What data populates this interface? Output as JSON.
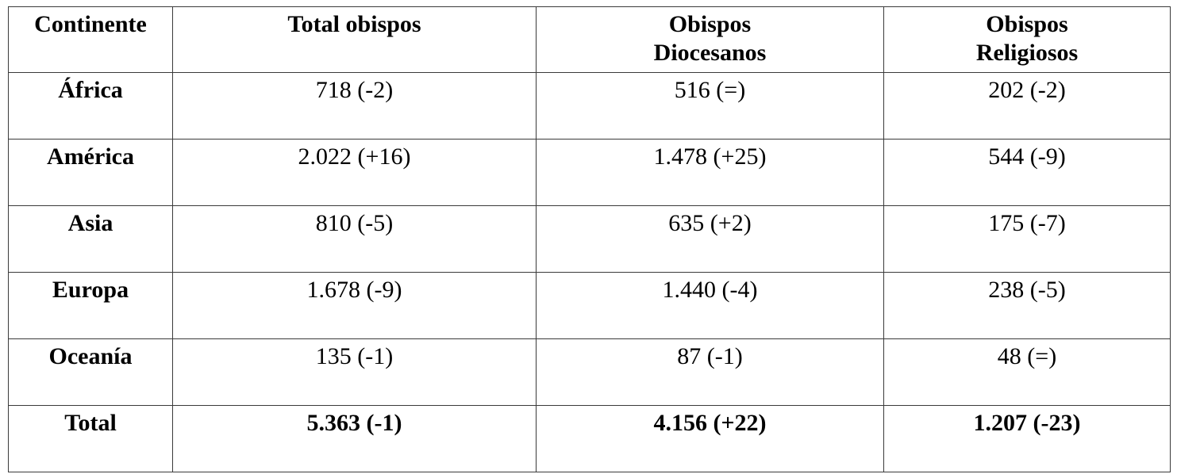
{
  "table": {
    "header": [
      [
        "Continente"
      ],
      [
        "Total obispos"
      ],
      [
        "Obispos",
        "Diocesanos"
      ],
      [
        "Obispos",
        "Religiosos"
      ]
    ],
    "rows": [
      [
        "África",
        "718 (-2)",
        "516 (=)",
        "202 (-2)"
      ],
      [
        "América",
        "2.022 (+16)",
        "1.478 (+25)",
        "544 (-9)"
      ],
      [
        "Asia",
        "810 (-5)",
        "635 (+2)",
        "175 (-7)"
      ],
      [
        "Europa",
        "1.678 (-9)",
        "1.440 (-4)",
        "238 (-5)"
      ],
      [
        "Oceanía",
        "135 (-1)",
        "87 (-1)",
        "48 (=)"
      ],
      [
        "Total",
        "5.363 (-1)",
        "4.156 (+22)",
        "1.207 (-23)"
      ]
    ]
  }
}
